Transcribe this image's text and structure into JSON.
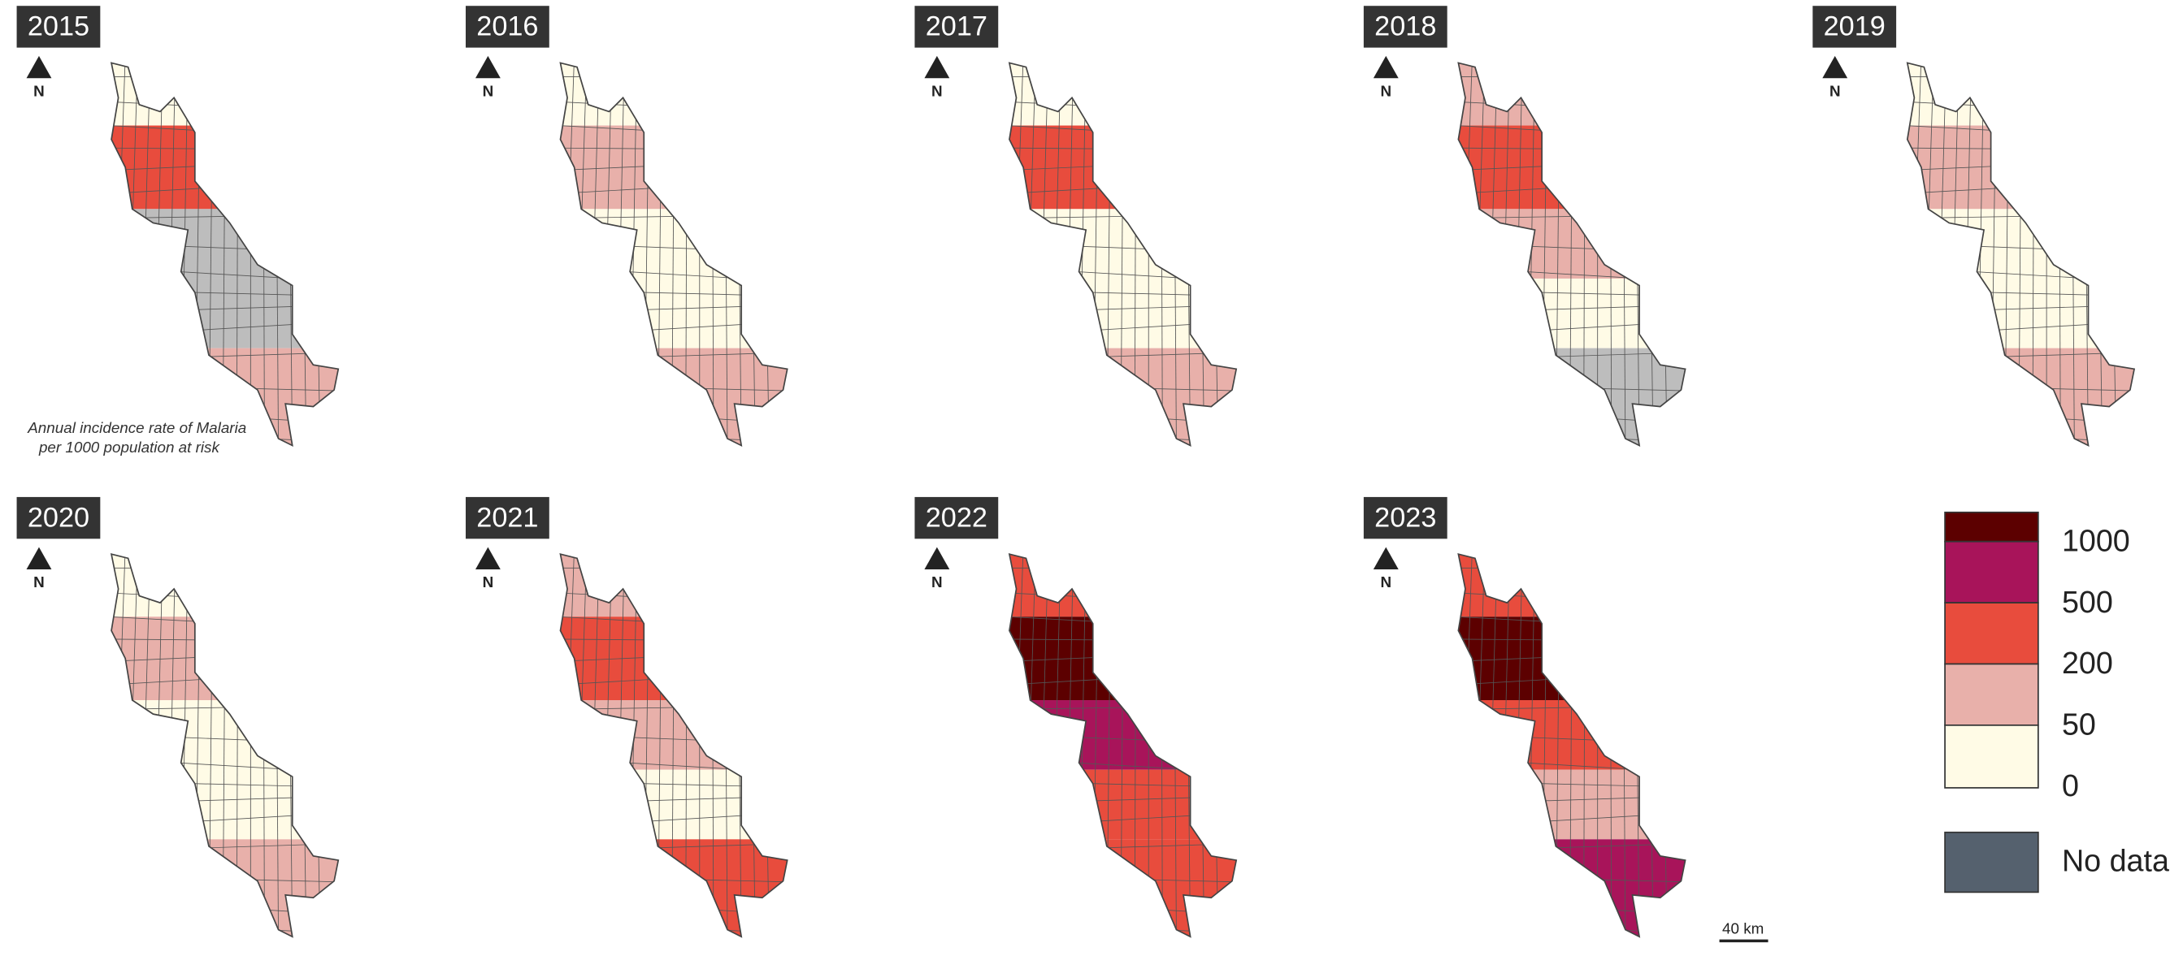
{
  "panels": [
    {
      "year": "2015"
    },
    {
      "year": "2016"
    },
    {
      "year": "2017"
    },
    {
      "year": "2018"
    },
    {
      "year": "2019"
    },
    {
      "year": "2020"
    },
    {
      "year": "2021"
    },
    {
      "year": "2022"
    },
    {
      "year": "2023"
    }
  ],
  "north_label": "N",
  "caption": [
    "Annual incidence rate of Malaria",
    "per 1000 population at risk"
  ],
  "legend": {
    "classes": [
      {
        "label": "1000",
        "color": "#5c0000"
      },
      {
        "label": "500",
        "color": "#a8145a"
      },
      {
        "label": "200",
        "color": "#e84c3d"
      },
      {
        "label": "50",
        "color": "#e8b0aa"
      },
      {
        "label": "0",
        "color": "#fffbe6"
      }
    ],
    "no_data": {
      "label": "No data",
      "color": "#55616e"
    }
  },
  "scale_bar": "40 km"
}
